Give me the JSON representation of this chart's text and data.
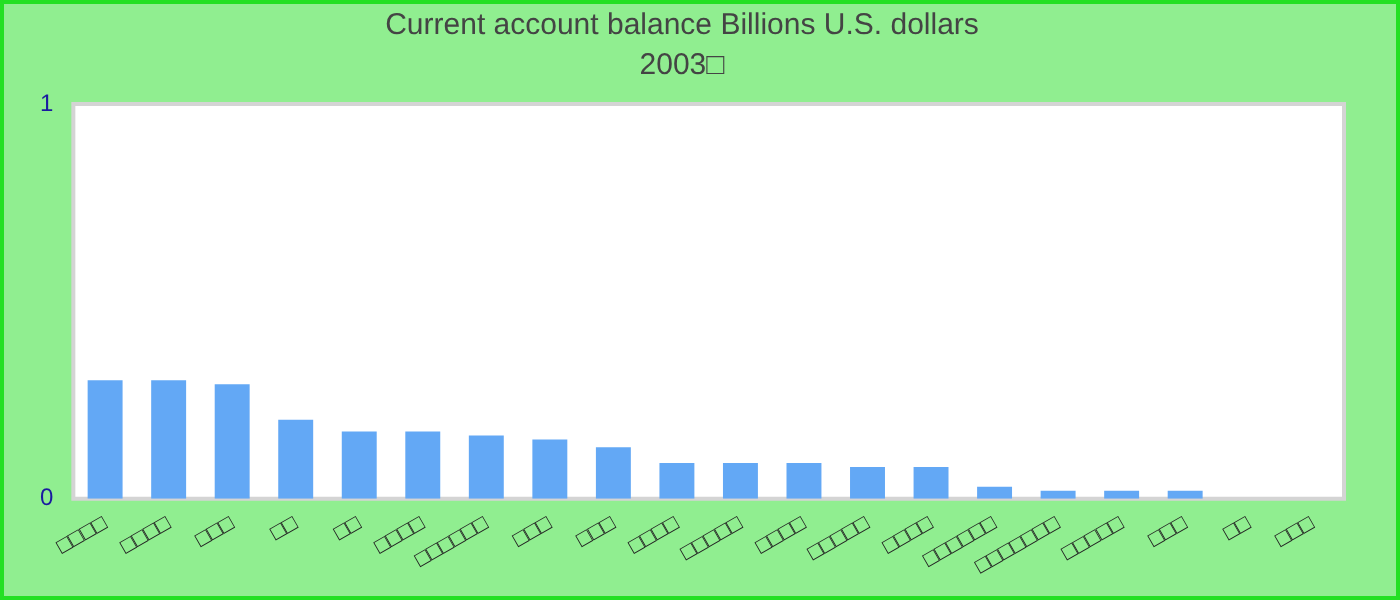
{
  "chart_data": {
    "type": "bar",
    "title": "Current account balance Billions U.S. dollars",
    "subtitle": "2003□",
    "categories": [
      "□□□□",
      "□□□□",
      "□□□",
      "□□",
      "□□",
      "□□□□",
      "□□□□□□",
      "□□□",
      "□□□",
      "□□□□",
      "□□□□□",
      "□□□□",
      "□□□□□",
      "□□□□",
      "□□□□□□",
      "□□□□□□□",
      "□□□□□",
      "□□□",
      "□□",
      "□□□"
    ],
    "values": [
      0.3,
      0.3,
      0.29,
      0.2,
      0.17,
      0.17,
      0.16,
      0.15,
      0.13,
      0.09,
      0.09,
      0.09,
      0.08,
      0.08,
      0.03,
      0.02,
      0.02,
      0.02,
      0,
      0
    ],
    "color": "#63a8f5",
    "ylim": [
      0,
      1
    ],
    "yticks": [
      0,
      1
    ],
    "grid": false,
    "legend": false
  }
}
